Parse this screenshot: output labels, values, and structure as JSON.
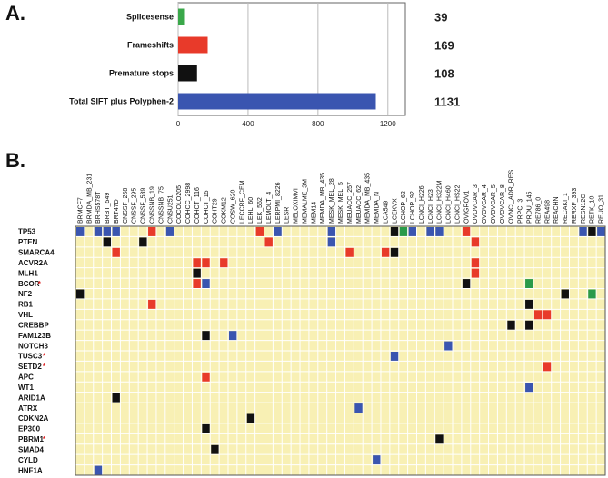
{
  "panel_labels": {
    "a": "A.",
    "b": "B."
  },
  "chart_data": [
    {
      "type": "bar",
      "orientation": "horizontal",
      "categories": [
        "Splicesense",
        "Frameshifts",
        "Premature stops",
        "Total SIFT plus Polyphen-2"
      ],
      "values": [
        39,
        169,
        108,
        1131
      ],
      "value_labels": [
        "39",
        "169",
        "108",
        "1131"
      ],
      "colors": [
        "#3aa84a",
        "#e83a2a",
        "#111111",
        "#3a55b0"
      ],
      "xticks": [
        0,
        400,
        800,
        1200
      ],
      "xtick_labels": [
        "0",
        "400",
        "800",
        "1200"
      ],
      "xlim": [
        0,
        1300
      ],
      "grid": true
    },
    {
      "type": "heatmap",
      "columns": [
        "BRMCF7",
        "BRMDA_MB_231",
        "BRHS578T",
        "BRBT_549",
        "BRT47D",
        "CNSSF_268",
        "CNSSF_295",
        "CNSSF_539",
        "CNSSNB_19",
        "CNSSNB_75",
        "CNSU251",
        "COCOLO205",
        "COHCC_2998",
        "COHCT_116",
        "COHCT_15",
        "COHT29",
        "COKM12",
        "COSW_620",
        "LECCRF_CEM",
        "LEHL_60",
        "LEK_562",
        "LEMOLT_4",
        "LERPMI_8226",
        "LESR",
        "MELOXIMVI",
        "MEMALME_3M",
        "MEM14",
        "MEMDA_MB_435",
        "MESK_MEL_28",
        "MESK_MEL_5",
        "MEUACC_257",
        "MEUACC_62",
        "MEMDA_MB_435",
        "MEMDA_N",
        "LCA549",
        "LCEKVX",
        "LCHOP_62",
        "LCHOP_92",
        "LCNCI_H226",
        "LCNCI_H23",
        "LCNCI_H322M",
        "LCNCI_H460",
        "LCNCI_HS22",
        "OVIGROV1",
        "OVOVCAR_3",
        "OVOVCAR_4",
        "OVOVCAR_5",
        "OVOVCAR_8",
        "OVNCI_ADR_RES",
        "PRPC_3",
        "PRDU_145",
        "RE786_0",
        "REA498",
        "REACHN",
        "RECAKI_1",
        "RERXF_393",
        "RESN12C",
        "RETK_10",
        "REUO_31"
      ],
      "rows": [
        "TP53",
        "PTEN",
        "SMARCA4",
        "ACVR2A",
        "MLH1",
        "BCOR",
        "NF2",
        "RB1",
        "VHL",
        "CREBBP",
        "FAM123B",
        "NOTCH3",
        "TUSC3",
        "SETD2",
        "APC",
        "WT1",
        "ARID1A",
        "ATRX",
        "CDKN2A",
        "EP300",
        "PBRM1",
        "SMAD4",
        "CYLD",
        "HNF1A"
      ],
      "row_marks": [
        "",
        "",
        "",
        "",
        "",
        "*",
        "",
        "",
        "",
        "",
        "",
        "",
        "*",
        "*",
        "",
        "",
        "",
        "",
        "",
        "",
        "*",
        "",
        "",
        ""
      ],
      "background_color": "#f8f0b4",
      "legend_colors": {
        "blue": "#3a55b0",
        "red": "#e83a2a",
        "black": "#111111",
        "green": "#2a9a4a"
      },
      "mutations": [
        {
          "row": "TP53",
          "col": "BRMCF7",
          "color": "blue"
        },
        {
          "row": "TP53",
          "col": "BRHS578T",
          "color": "blue"
        },
        {
          "row": "TP53",
          "col": "BRBT_549",
          "color": "blue"
        },
        {
          "row": "TP53",
          "col": "BRT47D",
          "color": "blue"
        },
        {
          "row": "TP53",
          "col": "CNSSNB_19",
          "color": "red"
        },
        {
          "row": "TP53",
          "col": "CNSU251",
          "color": "blue"
        },
        {
          "row": "TP53",
          "col": "LEK_562",
          "color": "red"
        },
        {
          "row": "TP53",
          "col": "LERPMI_8226",
          "color": "blue"
        },
        {
          "row": "TP53",
          "col": "MESK_MEL_28",
          "color": "blue"
        },
        {
          "row": "TP53",
          "col": "LCEKVX",
          "color": "black"
        },
        {
          "row": "TP53",
          "col": "LCHOP_62",
          "color": "green"
        },
        {
          "row": "TP53",
          "col": "LCHOP_92",
          "color": "blue"
        },
        {
          "row": "TP53",
          "col": "LCNCI_H23",
          "color": "blue"
        },
        {
          "row": "TP53",
          "col": "LCNCI_H322M",
          "color": "blue"
        },
        {
          "row": "TP53",
          "col": "OVIGROV1",
          "color": "red"
        },
        {
          "row": "TP53",
          "col": "RESN12C",
          "color": "blue"
        },
        {
          "row": "TP53",
          "col": "RETK_10",
          "color": "black"
        },
        {
          "row": "TP53",
          "col": "REUO_31",
          "color": "blue"
        },
        {
          "row": "PTEN",
          "col": "BRBT_549",
          "color": "black"
        },
        {
          "row": "PTEN",
          "col": "CNSSF_539",
          "color": "black"
        },
        {
          "row": "PTEN",
          "col": "LEMOLT_4",
          "color": "red"
        },
        {
          "row": "PTEN",
          "col": "MESK_MEL_28",
          "color": "blue"
        },
        {
          "row": "PTEN",
          "col": "OVOVCAR_3",
          "color": "red"
        },
        {
          "row": "SMARCA4",
          "col": "BRT47D",
          "color": "red"
        },
        {
          "row": "SMARCA4",
          "col": "MEUACC_257",
          "color": "red"
        },
        {
          "row": "SMARCA4",
          "col": "LCA549",
          "color": "red"
        },
        {
          "row": "SMARCA4",
          "col": "LCEKVX",
          "color": "black"
        },
        {
          "row": "ACVR2A",
          "col": "COHCT_116",
          "color": "red"
        },
        {
          "row": "ACVR2A",
          "col": "COHCT_15",
          "color": "red"
        },
        {
          "row": "ACVR2A",
          "col": "COKM12",
          "color": "red"
        },
        {
          "row": "ACVR2A",
          "col": "OVOVCAR_3",
          "color": "red"
        },
        {
          "row": "MLH1",
          "col": "COHCT_116",
          "color": "black"
        },
        {
          "row": "MLH1",
          "col": "OVOVCAR_3",
          "color": "red"
        },
        {
          "row": "BCOR",
          "col": "COHCT_116",
          "color": "red"
        },
        {
          "row": "BCOR",
          "col": "COHCT_15",
          "color": "blue"
        },
        {
          "row": "BCOR",
          "col": "OVIGROV1",
          "color": "black"
        },
        {
          "row": "BCOR",
          "col": "PRDU_145",
          "color": "green"
        },
        {
          "row": "NF2",
          "col": "BRMCF7",
          "color": "black"
        },
        {
          "row": "NF2",
          "col": "RECAKI_1",
          "color": "black"
        },
        {
          "row": "NF2",
          "col": "RETK_10",
          "color": "green"
        },
        {
          "row": "RB1",
          "col": "CNSSNB_19",
          "color": "red"
        },
        {
          "row": "RB1",
          "col": "PRDU_145",
          "color": "black"
        },
        {
          "row": "VHL",
          "col": "RE786_0",
          "color": "red"
        },
        {
          "row": "VHL",
          "col": "REA498",
          "color": "red"
        },
        {
          "row": "CREBBP",
          "col": "OVNCI_ADR_RES",
          "color": "black"
        },
        {
          "row": "CREBBP",
          "col": "PRDU_145",
          "color": "black"
        },
        {
          "row": "FAM123B",
          "col": "COHCT_15",
          "color": "black"
        },
        {
          "row": "FAM123B",
          "col": "COSW_620",
          "color": "blue"
        },
        {
          "row": "NOTCH3",
          "col": "LCNCI_H460",
          "color": "blue"
        },
        {
          "row": "TUSC3",
          "col": "LCEKVX",
          "color": "blue"
        },
        {
          "row": "SETD2",
          "col": "REA498",
          "color": "red"
        },
        {
          "row": "APC",
          "col": "COHCT_15",
          "color": "red"
        },
        {
          "row": "WT1",
          "col": "PRDU_145",
          "color": "blue"
        },
        {
          "row": "ARID1A",
          "col": "BRT47D",
          "color": "black"
        },
        {
          "row": "ATRX",
          "col": "MEUACC_62",
          "color": "blue"
        },
        {
          "row": "CDKN2A",
          "col": "LEHL_60",
          "color": "black"
        },
        {
          "row": "EP300",
          "col": "COHCT_15",
          "color": "black"
        },
        {
          "row": "PBRM1",
          "col": "LCNCI_H322M",
          "color": "black"
        },
        {
          "row": "SMAD4",
          "col": "COHT29",
          "color": "black"
        },
        {
          "row": "CYLD",
          "col": "MEMDA_N",
          "color": "blue"
        },
        {
          "row": "HNF1A",
          "col": "BRHS578T",
          "color": "blue"
        }
      ]
    }
  ]
}
